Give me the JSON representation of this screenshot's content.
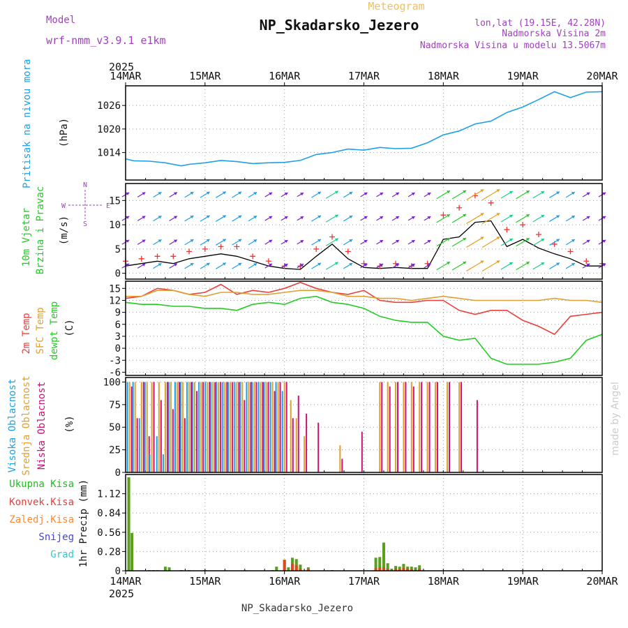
{
  "header": {
    "model_label": "Model",
    "model_name": "wrf-nmm_v3.9.1  e1km",
    "subtitle": "Meteogram",
    "title": "NP_Skadarsko_Jezero",
    "lonlat": "lon,lat (19.15E, 42.28N)",
    "altitude": "Nadmorska Visina 2m",
    "model_altitude": "Nadmorska Visina u modelu 13.5067m",
    "footer": "NP_Skadarsko_Jezero",
    "credit": "made by Angel"
  },
  "time_axis": {
    "year": "2025",
    "labels": [
      "14MAR",
      "15MAR",
      "16MAR",
      "17MAR",
      "18MAR",
      "19MAR",
      "20MAR"
    ]
  },
  "colors": {
    "pressure": "#1ea0e6",
    "temp2m": "#e8413a",
    "sfc": "#e0a030",
    "dewpt": "#22cc22",
    "high_cloud": "#1ea0e6",
    "mid_cloud": "#e0a030",
    "low_cloud": "#cc1177",
    "total_precip": "#5a9e1e",
    "conv_precip": "#d94a1e",
    "frozen": "#ff8833",
    "snow": "#4444dd",
    "hail": "#33cccc",
    "title_purple": "#a040c0",
    "wind_line": "#000000",
    "gust": "#ee3333"
  },
  "chart_data": [
    {
      "type": "line",
      "ylabel": "Pritisak na nivou mora",
      "unit": "(hPa)",
      "yticks": [
        "1014",
        "1020",
        "1026"
      ],
      "ylim": [
        1007,
        1031
      ],
      "grid": true,
      "x_days": [
        0,
        0.1,
        0.3,
        0.5,
        0.7,
        0.8,
        1.0,
        1.2,
        1.4,
        1.6,
        1.8,
        2.0,
        2.2,
        2.4,
        2.6,
        2.8,
        3.0,
        3.2,
        3.4,
        3.6,
        3.8,
        4.0,
        4.2,
        4.4,
        4.6,
        4.8,
        5.0,
        5.2,
        5.4,
        5.6,
        5.8,
        6.0
      ],
      "series": [
        {
          "name": "Pritisak na nivou mora",
          "values": [
            1012.4,
            1011.9,
            1011.8,
            1011.4,
            1010.6,
            1011.0,
            1011.4,
            1012.0,
            1011.7,
            1011.2,
            1011.4,
            1011.5,
            1012.0,
            1013.5,
            1014.0,
            1014.9,
            1014.6,
            1015.3,
            1015.0,
            1015.1,
            1016.5,
            1018.5,
            1019.5,
            1021.3,
            1022.0,
            1024.2,
            1025.6,
            1027.5,
            1029.5,
            1028.0,
            1029.4,
            1029.5
          ]
        }
      ]
    },
    {
      "type": "line",
      "ylabel": "10m Vjetar Brzina i Pravac",
      "unit": "(m/s)",
      "compass": {
        "n": "N",
        "s": "S",
        "e": "E",
        "w": "W"
      },
      "yticks": [
        "0",
        "5",
        "10",
        "15"
      ],
      "ylim": [
        -1.2,
        18.5
      ],
      "grid": true,
      "x_days": [
        0,
        0.2,
        0.4,
        0.6,
        0.8,
        1.0,
        1.2,
        1.4,
        1.6,
        1.8,
        2.0,
        2.2,
        2.4,
        2.6,
        2.8,
        3.0,
        3.2,
        3.4,
        3.6,
        3.8,
        4.0,
        4.2,
        4.4,
        4.6,
        4.8,
        5.0,
        5.2,
        5.4,
        5.6,
        5.8,
        6.0
      ],
      "series": [
        {
          "name": "speed",
          "values": [
            1.5,
            2.0,
            2.5,
            2.0,
            3.0,
            3.5,
            4.0,
            3.5,
            2.5,
            1.5,
            1.0,
            0.8,
            3.5,
            6.0,
            3.0,
            1.2,
            1.0,
            1.2,
            1.0,
            1.0,
            7.0,
            7.5,
            10.5,
            10.8,
            5.5,
            7.0,
            5.2,
            4.0,
            3.0,
            1.5,
            1.5
          ]
        },
        {
          "name": "gust",
          "values": [
            2.5,
            3.0,
            3.5,
            3.5,
            4.5,
            5.0,
            5.5,
            5.5,
            3.5,
            2.5,
            1.5,
            1.5,
            5.0,
            7.5,
            4.5,
            2.0,
            1.5,
            2.0,
            1.5,
            2.0,
            12.0,
            13.5,
            16.0,
            14.5,
            9.0,
            10.0,
            8.0,
            6.0,
            4.5,
            2.5,
            2.0
          ]
        }
      ]
    },
    {
      "type": "line",
      "ylabels": [
        "2m Temp",
        "SFC Temp",
        "dewpt Temp"
      ],
      "unit": "(C)",
      "yticks": [
        "-6",
        "-3",
        "0",
        "3",
        "6",
        "9",
        "12",
        "15"
      ],
      "ylim": [
        -6.8,
        16.8
      ],
      "grid": true,
      "x_days": [
        0,
        0.2,
        0.4,
        0.6,
        0.8,
        1.0,
        1.2,
        1.4,
        1.6,
        1.8,
        2.0,
        2.2,
        2.4,
        2.6,
        2.8,
        3.0,
        3.2,
        3.4,
        3.6,
        3.8,
        4.0,
        4.2,
        4.4,
        4.6,
        4.8,
        5.0,
        5.2,
        5.4,
        5.6,
        5.8,
        6.0
      ],
      "series": [
        {
          "name": "2m Temp",
          "values": [
            12.5,
            13.0,
            15.0,
            14.5,
            13.5,
            14.0,
            16.0,
            13.5,
            14.5,
            14.0,
            15.0,
            16.5,
            15.0,
            14.0,
            13.5,
            14.5,
            12.0,
            11.5,
            11.5,
            12.0,
            12.0,
            9.5,
            8.5,
            9.5,
            9.5,
            7.0,
            5.5,
            3.5,
            8.0,
            8.5,
            9.0
          ]
        },
        {
          "name": "SFC Temp",
          "values": [
            13.0,
            13.0,
            14.5,
            14.5,
            13.5,
            13.0,
            14.0,
            14.0,
            13.5,
            13.5,
            14.0,
            14.5,
            14.5,
            14.0,
            13.0,
            13.0,
            12.5,
            12.5,
            12.0,
            12.5,
            13.0,
            12.5,
            12.0,
            12.0,
            12.0,
            12.0,
            12.0,
            12.5,
            12.0,
            12.0,
            11.5
          ]
        },
        {
          "name": "dewpt Temp",
          "values": [
            11.5,
            11.0,
            11.0,
            10.5,
            10.5,
            10.0,
            10.0,
            9.5,
            11.0,
            11.5,
            11.0,
            12.5,
            13.0,
            11.5,
            11.0,
            10.0,
            8.0,
            7.0,
            6.5,
            6.5,
            3.0,
            2.0,
            2.5,
            -2.5,
            -4.0,
            -4.0,
            -4.0,
            -3.5,
            -2.5,
            2.0,
            3.5
          ]
        }
      ]
    },
    {
      "type": "bar",
      "ylabels": [
        "Visoka Oblacnost",
        "Srednja Oblacnost",
        "Niska Oblacnost"
      ],
      "unit": "(%)",
      "yticks": [
        "0",
        "25",
        "50",
        "75",
        "100"
      ],
      "ylim": [
        0,
        105
      ],
      "grid": true,
      "x_days": [
        0.05,
        0.12,
        0.2,
        0.27,
        0.33,
        0.42,
        0.5,
        0.57,
        0.65,
        0.72,
        0.8,
        0.87,
        0.95,
        1.03,
        1.1,
        1.17,
        1.25,
        1.32,
        1.4,
        1.47,
        1.55,
        1.62,
        1.7,
        1.77,
        1.85,
        1.92,
        2.0,
        2.08,
        2.15,
        2.25,
        2.4,
        2.7,
        2.95,
        3.2,
        3.3,
        3.4,
        3.5,
        3.6,
        3.7,
        3.8,
        3.9,
        4.05,
        4.2,
        4.4
      ],
      "series": [
        {
          "name": "Visoka Oblacnost",
          "values": [
            100,
            100,
            60,
            100,
            20,
            40,
            20,
            100,
            100,
            100,
            100,
            100,
            100,
            100,
            100,
            100,
            100,
            100,
            100,
            100,
            100,
            100,
            100,
            100,
            100,
            100,
            90,
            0,
            0,
            0,
            0,
            0,
            0,
            0,
            0,
            0,
            0,
            0,
            0,
            0,
            0,
            0,
            0,
            0
          ]
        },
        {
          "name": "Srednja Oblacnost",
          "values": [
            100,
            100,
            100,
            100,
            100,
            100,
            100,
            100,
            100,
            100,
            100,
            100,
            100,
            100,
            100,
            100,
            100,
            100,
            100,
            100,
            100,
            100,
            100,
            100,
            100,
            100,
            100,
            80,
            60,
            40,
            0,
            30,
            0,
            100,
            100,
            100,
            100,
            100,
            100,
            100,
            100,
            100,
            100,
            0
          ]
        },
        {
          "name": "Niska Oblacnost",
          "values": [
            95,
            60,
            100,
            40,
            100,
            80,
            100,
            70,
            100,
            60,
            100,
            90,
            100,
            100,
            100,
            100,
            100,
            100,
            100,
            80,
            100,
            100,
            100,
            100,
            90,
            100,
            100,
            60,
            85,
            65,
            55,
            15,
            45,
            100,
            95,
            100,
            100,
            95,
            100,
            100,
            100,
            100,
            100,
            80
          ]
        }
      ]
    },
    {
      "type": "bar",
      "ylabels": [
        "Ukupna Kisa",
        "Konvek.Kisa",
        "Zaledj.Kisa",
        "Snijeg",
        "Grad"
      ],
      "unit": "1hr Precip (mm)",
      "yticks": [
        "0",
        "0.28",
        "0.56",
        "0.84",
        "1.12"
      ],
      "ylim": [
        0,
        1.4
      ],
      "grid": true,
      "x_days": [
        0.04,
        0.08,
        0.3,
        0.35,
        0.4,
        0.5,
        0.55,
        0.7,
        0.8,
        1.0,
        1.5,
        1.85,
        1.9,
        2.0,
        2.05,
        2.1,
        2.15,
        2.2,
        2.3,
        2.6,
        3.15,
        3.2,
        3.25,
        3.3,
        3.35,
        3.4,
        3.45,
        3.5,
        3.55,
        3.6,
        3.65,
        3.7,
        3.75
      ],
      "series": [
        {
          "name": "Ukupna Kisa",
          "values": [
            1.36,
            0.55,
            0.01,
            0.01,
            0.01,
            0.06,
            0.05,
            0.01,
            0.01,
            0.01,
            0.01,
            0.01,
            0.06,
            0.16,
            0.05,
            0.19,
            0.17,
            0.09,
            0.05,
            0.01,
            0.19,
            0.2,
            0.41,
            0.11,
            0.03,
            0.07,
            0.06,
            0.1,
            0.06,
            0.06,
            0.05,
            0.08,
            0.01
          ]
        },
        {
          "name": "Konvek.Kisa",
          "values": [
            0,
            0,
            0,
            0,
            0,
            0,
            0,
            0,
            0,
            0,
            0,
            0,
            0,
            0.16,
            0,
            0.1,
            0.08,
            0.03,
            0.02,
            0,
            0.04,
            0.05,
            0.05,
            0.03,
            0.01,
            0.03,
            0.02,
            0.04,
            0.03,
            0.02,
            0.01,
            0.03,
            0
          ]
        }
      ]
    }
  ]
}
